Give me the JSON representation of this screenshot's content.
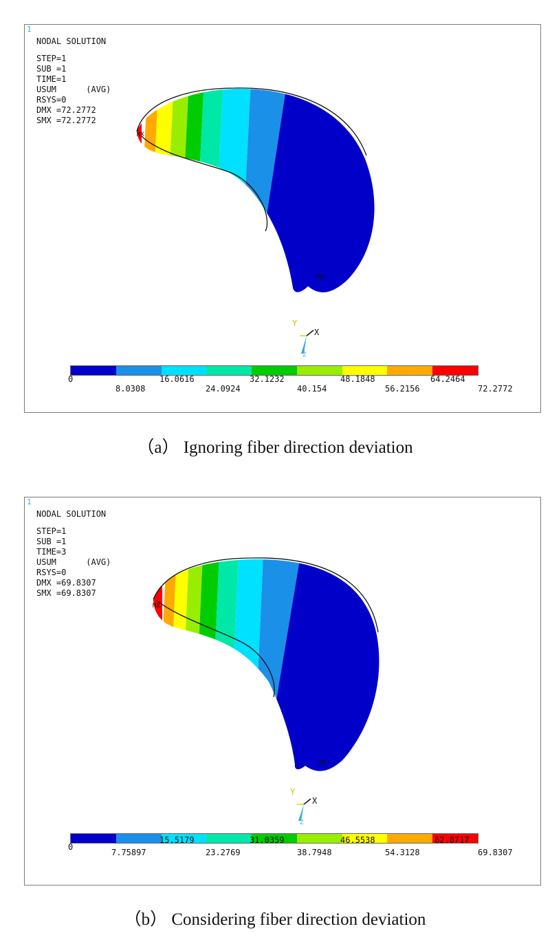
{
  "colors": [
    "#0000c8",
    "#1b90e8",
    "#00e0ff",
    "#00e8a8",
    "#00cc00",
    "#99ee00",
    "#ffff00",
    "#ffaa00",
    "#ff0000"
  ],
  "panel_a": {
    "win_num": "1",
    "title": "NODAL SOLUTION",
    "info": [
      "STEP=1",
      "SUB =1",
      "TIME=1",
      "USUM      (AVG)",
      "RSYS=0",
      "DMX =72.2772",
      "SMX =72.2772"
    ],
    "mx_label": "MX",
    "mn_label": "MN",
    "triad_y": "Y",
    "triad_x": "X",
    "triad_z": "Z",
    "ticks_top": [
      "0",
      "16.0616",
      "32.1232",
      "48.1848",
      "64.2464"
    ],
    "ticks_bottom": [
      "8.0308",
      "24.0924",
      "40.154",
      "56.2156",
      "72.2772"
    ]
  },
  "panel_b": {
    "win_num": "1",
    "title": "NODAL SOLUTION",
    "info": [
      "STEP=1",
      "SUB =1",
      "TIME=3",
      "USUM      (AVG)",
      "RSYS=0",
      "DMX =69.8307",
      "SMX =69.8307"
    ],
    "mx_label": "MX",
    "mn_label": "MN",
    "triad_y": "Y",
    "triad_x": "X",
    "triad_z": "Z",
    "ticks_top": [
      "0",
      "15.5179",
      "31.0359",
      "46.5538",
      "62.0717"
    ],
    "ticks_bottom": [
      "7.75897",
      "23.2769",
      "38.7948",
      "54.3128",
      "69.8307"
    ]
  },
  "caption_a": "（a）  Ignoring fiber direction deviation",
  "caption_b": "（b）  Considering fiber direction deviation"
}
